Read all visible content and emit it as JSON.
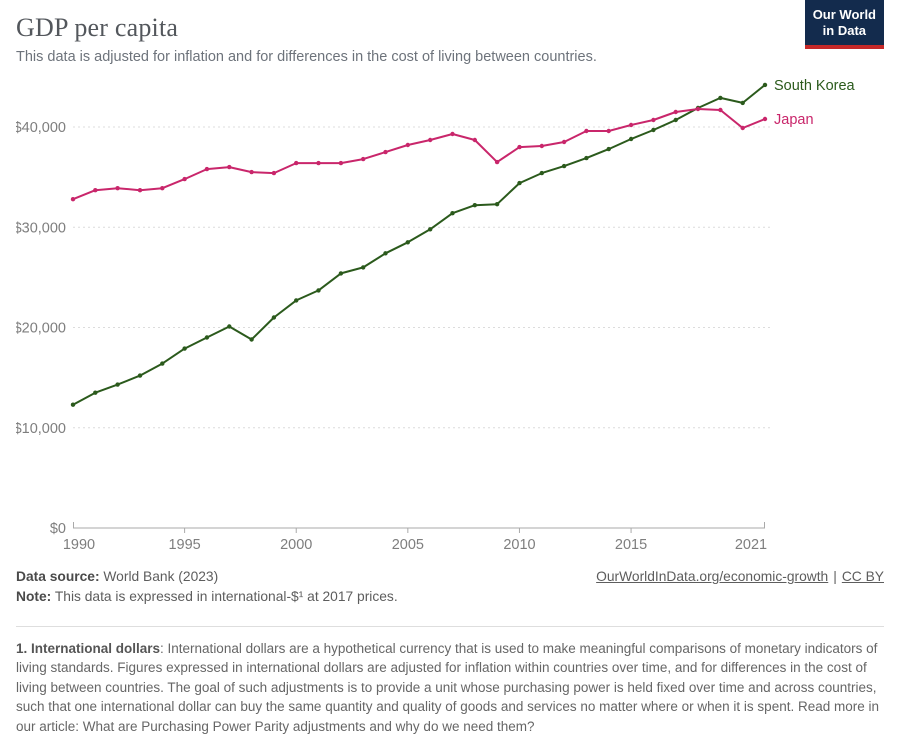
{
  "header": {
    "title": "GDP per capita",
    "subtitle": "This data is adjusted for inflation and for differences in the cost of living between countries.",
    "logo": {
      "line1": "Our World",
      "line2": "in Data",
      "bg_color": "#132b4d",
      "accent_color": "#c62828"
    }
  },
  "chart_data": {
    "type": "line",
    "title": "GDP per capita",
    "xlabel": "",
    "ylabel": "",
    "x": [
      1990,
      1991,
      1992,
      1993,
      1994,
      1995,
      1996,
      1997,
      1998,
      1999,
      2000,
      2001,
      2002,
      2003,
      2004,
      2005,
      2006,
      2007,
      2008,
      2009,
      2010,
      2011,
      2012,
      2013,
      2014,
      2015,
      2016,
      2017,
      2018,
      2019,
      2020,
      2021
    ],
    "series": [
      {
        "name": "South Korea",
        "color": "#2B5A1C",
        "values": [
          12300,
          13500,
          14300,
          15200,
          16400,
          17900,
          19000,
          20100,
          18800,
          21000,
          22700,
          23700,
          25400,
          26000,
          27400,
          28500,
          29800,
          31400,
          32200,
          32300,
          34400,
          35400,
          36100,
          36900,
          37800,
          38800,
          39700,
          40700,
          41900,
          42900,
          42400,
          44200
        ]
      },
      {
        "name": "Japan",
        "color": "#C9266B",
        "values": [
          32800,
          33700,
          33900,
          33700,
          33900,
          34800,
          35800,
          36000,
          35500,
          35400,
          36400,
          36400,
          36400,
          36800,
          37500,
          38200,
          38700,
          39300,
          38700,
          36500,
          38000,
          38100,
          38500,
          39600,
          39600,
          40200,
          40700,
          41500,
          41800,
          41700,
          39900,
          40800
        ]
      }
    ],
    "xticks": [
      "1990",
      "1995",
      "2000",
      "2005",
      "2010",
      "2015",
      "2021"
    ],
    "yticks": [
      {
        "value": 0,
        "label": "$0"
      },
      {
        "value": 10000,
        "label": "$10,000"
      },
      {
        "value": 20000,
        "label": "$20,000"
      },
      {
        "value": 30000,
        "label": "$30,000"
      },
      {
        "value": 40000,
        "label": "$40,000"
      }
    ],
    "ylim": [
      0,
      45000
    ],
    "grid": "horizontal-dashed",
    "grid_color": "#dcdcdc",
    "axis_color": "#a9a9a9",
    "tick_label_color": "#7e7e7e",
    "legend_position": "line-end-labels"
  },
  "footer": {
    "data_source_label": "Data source:",
    "data_source_value": " World Bank (2023)",
    "note_label": "Note:",
    "note_value": " This data is expressed in international-$¹ at 2017 prices.",
    "link1": "OurWorldInData.org/economic-growth",
    "link_separator": "|",
    "link2": "CC BY"
  },
  "footnote": {
    "label": "1. International dollars",
    "body": ": International dollars are a hypothetical currency that is used to make meaningful comparisons of monetary indicators of living standards. Figures expressed in international dollars are adjusted for inflation within countries over time, and for differences in the cost of living between countries. The goal of such adjustments is to provide a unit whose purchasing power is held fixed over time and across countries, such that one international dollar can buy the same quantity and quality of goods and services no matter where or when it is spent. Read more in our article: What are Purchasing Power Parity adjustments and why do we need them?"
  }
}
